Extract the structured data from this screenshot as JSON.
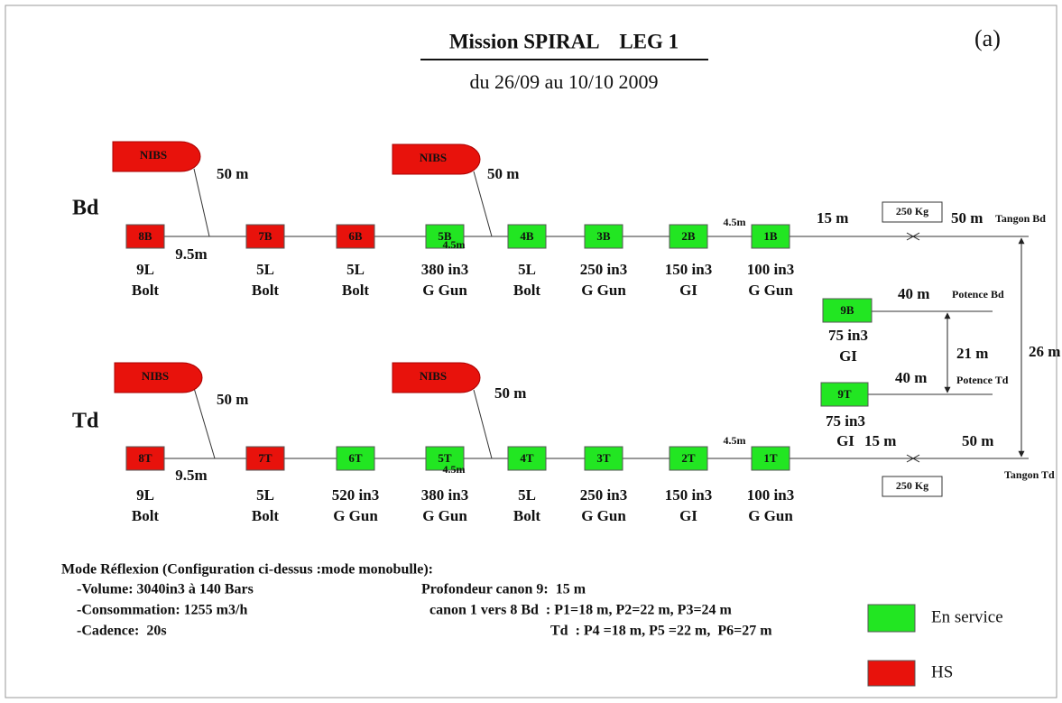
{
  "title": "Mission SPIRAL    LEG 1",
  "subtitle": "du 26/09 au 10/10 2009",
  "panel_label": "(a)",
  "rows": [
    {
      "label": "Bd",
      "guns": [
        {
          "id": "8B",
          "color": "#e8120c",
          "specs": [
            "9L",
            "Bolt"
          ]
        },
        {
          "id": "7B",
          "color": "#e8120c",
          "specs": [
            "5L",
            "Bolt"
          ]
        },
        {
          "id": "6B",
          "color": "#e8120c",
          "specs": [
            "5L",
            "Bolt"
          ]
        },
        {
          "id": "5B",
          "color": "#22e622",
          "specs": [
            "380 in3",
            "G Gun"
          ]
        },
        {
          "id": "4B",
          "color": "#22e622",
          "specs": [
            "5L",
            "Bolt"
          ]
        },
        {
          "id": "3B",
          "color": "#22e622",
          "specs": [
            "250 in3",
            "G Gun"
          ]
        },
        {
          "id": "2B",
          "color": "#22e622",
          "specs": [
            "150 in3",
            "GI"
          ]
        },
        {
          "id": "1B",
          "color": "#22e622",
          "specs": [
            "100 in3",
            "G Gun"
          ]
        }
      ],
      "nibs": [
        {
          "label": "NIBS",
          "distance": "50 m"
        },
        {
          "label": "NIBS",
          "distance": "50 m"
        }
      ],
      "spacings": [
        "9.5m",
        "4.5m",
        "4.5m"
      ],
      "tow": {
        "distance": "15 m",
        "weight": "250 Kg",
        "end": "50 m",
        "tangon": "Tangon Bd"
      }
    },
    {
      "label": "Td",
      "guns": [
        {
          "id": "8T",
          "color": "#e8120c",
          "specs": [
            "9L",
            "Bolt"
          ]
        },
        {
          "id": "7T",
          "color": "#e8120c",
          "specs": [
            "5L",
            "Bolt"
          ]
        },
        {
          "id": "6T",
          "color": "#22e622",
          "specs": [
            "520 in3",
            "G Gun"
          ]
        },
        {
          "id": "5T",
          "color": "#22e622",
          "specs": [
            "380 in3",
            "G Gun"
          ]
        },
        {
          "id": "4T",
          "color": "#22e622",
          "specs": [
            "5L",
            "Bolt"
          ]
        },
        {
          "id": "3T",
          "color": "#22e622",
          "specs": [
            "250 in3",
            "G Gun"
          ]
        },
        {
          "id": "2T",
          "color": "#22e622",
          "specs": [
            "150 in3",
            "GI"
          ]
        },
        {
          "id": "1T",
          "color": "#22e622",
          "specs": [
            "100 in3",
            "G Gun"
          ]
        }
      ],
      "nibs": [
        {
          "label": "NIBS",
          "distance": "50 m"
        },
        {
          "label": "NIBS",
          "distance": "50 m"
        }
      ],
      "spacings": [
        "9.5m",
        "4.5m",
        "4.5m"
      ],
      "tow": {
        "distance": "15 m",
        "weight": "250 Kg",
        "end": "50 m",
        "tangon": "Tangon Td"
      }
    }
  ],
  "potence": [
    {
      "gun": {
        "id": "9B",
        "color": "#22e622",
        "specs": [
          "75 in3",
          "GI"
        ]
      },
      "distance": "40 m",
      "label": "Potence Bd"
    },
    {
      "gun": {
        "id": "9T",
        "color": "#22e622",
        "specs": [
          "75 in3",
          "GI"
        ]
      },
      "distance": "40 m",
      "label": "Potence Td"
    }
  ],
  "potence_spacing": "21 m",
  "tangon_spacing": "26 m",
  "notes": {
    "left": [
      "Mode Réflexion (Configuration ci-dessus :mode monobulle):",
      "-Volume: 3040in3 à 140 Bars",
      "-Consommation: 1255 m3/h",
      "-Cadence:  20s"
    ],
    "right": [
      "Profondeur canon 9:  15 m",
      "canon 1 vers 8 Bd  : P1=18 m, P2=22 m, P3=24 m",
      "Td  : P4 =18 m, P5 =22 m,  P6=27 m"
    ]
  },
  "legend": [
    {
      "label": "En service",
      "color": "#22e622"
    },
    {
      "label": "HS",
      "color": "#e8120c"
    }
  ]
}
